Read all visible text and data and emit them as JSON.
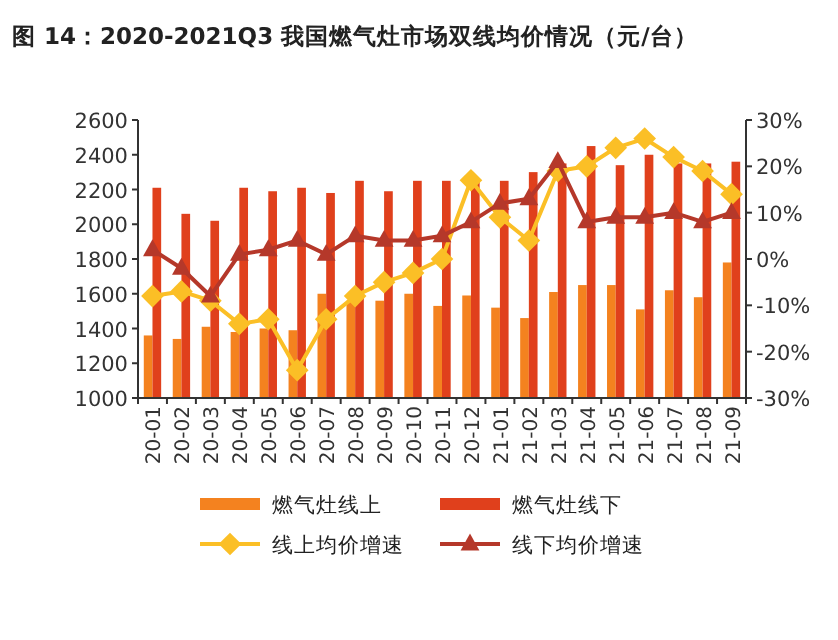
{
  "chart_data": {
    "type": "bar",
    "title": "图 14：2020-2021Q3 我国燃气灶市场双线均价情况（元/台）",
    "categories": [
      "20-01",
      "20-02",
      "20-03",
      "20-04",
      "20-05",
      "20-06",
      "20-07",
      "20-08",
      "20-09",
      "20-10",
      "20-11",
      "20-12",
      "21-01",
      "21-02",
      "21-03",
      "21-04",
      "21-05",
      "21-06",
      "21-07",
      "21-08",
      "21-09"
    ],
    "series": [
      {
        "name": "燃气灶线上",
        "color": "#f4821f",
        "values": [
          1360,
          1340,
          1410,
          1380,
          1400,
          1390,
          1600,
          1560,
          1560,
          1600,
          1530,
          1590,
          1520,
          1460,
          1610,
          1650,
          1650,
          1510,
          1620,
          1580,
          1780
        ]
      },
      {
        "name": "燃气灶线下",
        "color": "#e0401c",
        "values": [
          2210,
          2060,
          2020,
          2210,
          2190,
          2210,
          2180,
          2250,
          2190,
          2250,
          2250,
          2260,
          2250,
          2300,
          2350,
          2450,
          2340,
          2400,
          2350,
          2350,
          2360
        ]
      },
      {
        "name": "线上均价增速",
        "type": "line",
        "axis": "y2",
        "marker": "diamond",
        "color": "#fbbf26",
        "values": [
          -8,
          -7,
          -9,
          -14,
          -13,
          -24,
          -13,
          -8,
          -5,
          -3,
          0,
          17,
          9,
          4,
          19,
          20,
          24,
          26,
          22,
          19,
          14
        ]
      },
      {
        "name": "线下均价增速",
        "type": "line",
        "axis": "y2",
        "marker": "triangle",
        "color": "#b5382a",
        "values": [
          2,
          -2,
          -8,
          1,
          2,
          4,
          1,
          5,
          4,
          4,
          5,
          8,
          12,
          13,
          21,
          8,
          9,
          9,
          10,
          8,
          10
        ]
      }
    ],
    "ylim": [
      1000,
      2600
    ],
    "yticks": [
      1000,
      1200,
      1400,
      1600,
      1800,
      2000,
      2200,
      2400,
      2600
    ],
    "y2lim": [
      -30,
      30
    ],
    "y2ticks": [
      {
        "value": -30,
        "label": "-30%"
      },
      {
        "value": -20,
        "label": "-20%"
      },
      {
        "value": -10,
        "label": "-10%"
      },
      {
        "value": 0,
        "label": "0%"
      },
      {
        "value": 10,
        "label": "10%"
      },
      {
        "value": 20,
        "label": "20%"
      },
      {
        "value": 30,
        "label": "30%"
      }
    ],
    "legend": "bottom"
  }
}
